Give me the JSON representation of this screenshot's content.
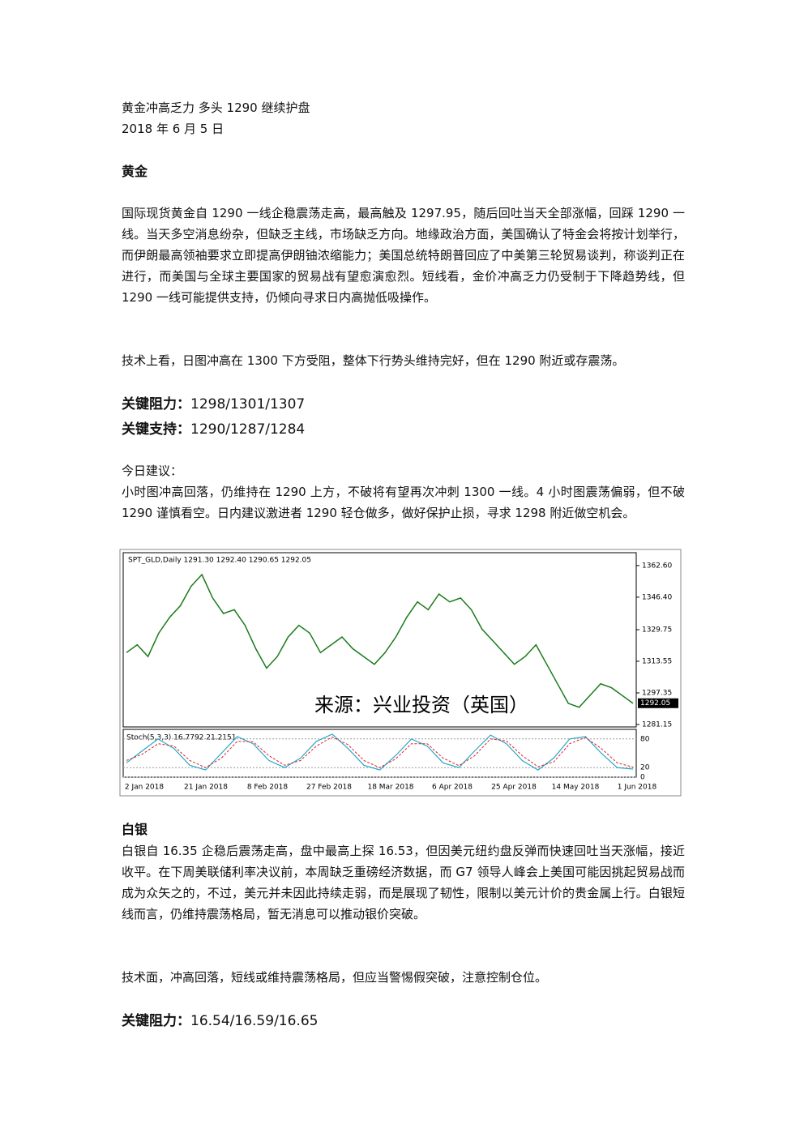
{
  "header": {
    "title": "黄金冲高乏力 多头 1290 继续护盘",
    "date": "2018 年 6 月 5 日"
  },
  "gold": {
    "heading": "黄金",
    "paragraphs": [
      "国际现货黄金自 1290 一线企稳震荡走高，最高触及 1297.95，随后回吐当天全部涨幅，回踩 1290 一线。当天多空消息纷杂，但缺乏主线，市场缺乏方向。地缘政治方面，美国确认了特金会将按计划举行，而伊朗最高领袖要求立即提高伊朗铀浓缩能力；美国总统特朗普回应了中美第三轮贸易谈判，称谈判正在进行，而美国与全球主要国家的贸易战有望愈演愈烈。短线看，金价冲高乏力仍受制于下降趋势线，但 1290 一线可能提供支持，仍倾向寻求日内高抛低吸操作。",
      "技术上看，日图冲高在 1300 下方受阻，整体下行势头维持完好，但在 1290 附近或存震荡。"
    ],
    "resistance": {
      "label": "关键阻力：",
      "value": "1298/1301/1307"
    },
    "support": {
      "label": "关键支持：",
      "value": "1290/1287/1284"
    },
    "advice": {
      "label": "今日建议：",
      "text": "小时图冲高回落，仍维持在 1290 上方，不破将有望再次冲刺 1300 一线。4 小时图震荡偏弱，但不破 1290 谨慎看空。日内建议激进者 1290 轻仓做多，做好保护止损，寻求 1298 附近做空机会。"
    }
  },
  "chart": {
    "header": "SPT_GLD,Daily  1291.30 1292.40 1290.65 1292.05",
    "watermark": "来源：兴业投资（英国）",
    "ylim": [
      1279.9,
      1369.2
    ],
    "yticks": [
      {
        "value": 1362.6,
        "label": "1362.60"
      },
      {
        "value": 1346.4,
        "label": "1346.40"
      },
      {
        "value": 1329.75,
        "label": "1329.75"
      },
      {
        "value": 1313.55,
        "label": "1313.55"
      },
      {
        "value": 1297.35,
        "label": "1297.35"
      },
      {
        "value": 1281.15,
        "label": "1281.15"
      }
    ],
    "last_price": 1292.05,
    "close": [
      1318,
      1322,
      1316,
      1328,
      1336,
      1342,
      1352,
      1358,
      1346,
      1338,
      1340,
      1332,
      1320,
      1310,
      1316,
      1326,
      1332,
      1328,
      1318,
      1322,
      1326,
      1320,
      1316,
      1312,
      1318,
      1326,
      1336,
      1344,
      1340,
      1348,
      1344,
      1346,
      1340,
      1330,
      1324,
      1318,
      1312,
      1316,
      1322,
      1312,
      1302,
      1292,
      1290,
      1296,
      1302,
      1300,
      1296,
      1292
    ],
    "stoch_label": "Stoch(5,3,3) 16.7792 21.2151",
    "stoch_ylim": [
      0,
      100
    ],
    "stoch_ticks": [
      80,
      20,
      0
    ],
    "stoch_k": [
      30,
      55,
      80,
      60,
      25,
      15,
      50,
      85,
      70,
      35,
      20,
      40,
      75,
      90,
      60,
      25,
      15,
      45,
      80,
      65,
      30,
      20,
      55,
      88,
      70,
      35,
      15,
      40,
      80,
      85,
      50,
      20,
      17
    ],
    "stoch_d": [
      35,
      48,
      70,
      65,
      35,
      20,
      40,
      75,
      74,
      45,
      25,
      35,
      65,
      84,
      68,
      35,
      20,
      38,
      70,
      70,
      40,
      24,
      45,
      80,
      76,
      45,
      22,
      32,
      70,
      83,
      60,
      30,
      21
    ],
    "dates": [
      "2 Jan 2018",
      "21 Jan 2018",
      "8 Feb 2018",
      "27 Feb 2018",
      "18 Mar 2018",
      "6 Apr 2018",
      "25 Apr 2018",
      "14 May 2018",
      "1 Jun 2018"
    ]
  },
  "silver": {
    "heading": "白银",
    "paragraphs": [
      "白银自 16.35 企稳后震荡走高，盘中最高上探 16.53，但因美元纽约盘反弹而快速回吐当天涨幅，接近收平。在下周美联储利率决议前，本周缺乏重磅经济数据，而 G7 领导人峰会上美国可能因挑起贸易战而成为众矢之的，不过，美元并未因此持续走弱，而是展现了韧性，限制以美元计价的贵金属上行。白银短线而言，仍维持震荡格局，暂无消息可以推动银价突破。",
      "技术面，冲高回落，短线或维持震荡格局，但应当警惕假突破，注意控制仓位。"
    ],
    "resistance": {
      "label": "关键阻力：",
      "value": "16.54/16.59/16.65"
    }
  }
}
